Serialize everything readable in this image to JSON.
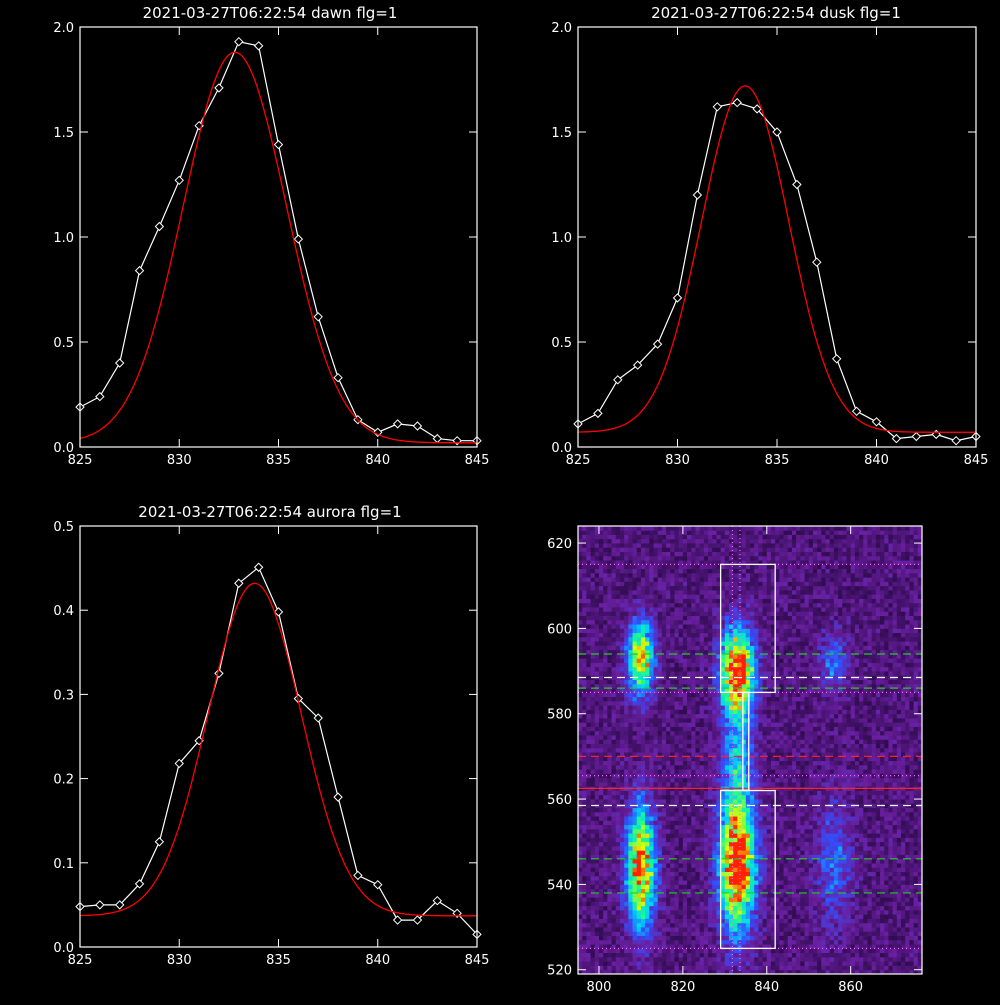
{
  "chart_data": [
    {
      "type": "line",
      "title": "2021-03-27T06:22:54 dawn flg=1",
      "xlim": [
        825,
        845
      ],
      "ylim": [
        0.0,
        2.0
      ],
      "xticks": [
        825,
        830,
        835,
        840,
        845
      ],
      "yticks": [
        "0.0",
        "0.5",
        "1.0",
        "1.5",
        "2.0"
      ],
      "series": [
        {
          "color": "#ffffff",
          "marker": "diamond",
          "x": [
            825,
            826,
            827,
            828,
            829,
            830,
            831,
            832,
            833,
            834,
            835,
            836,
            837,
            838,
            839,
            840,
            841,
            842,
            843,
            844,
            845
          ],
          "y": [
            0.19,
            0.24,
            0.4,
            0.84,
            1.05,
            1.27,
            1.53,
            1.71,
            1.93,
            1.91,
            1.44,
            0.99,
            0.62,
            0.33,
            0.13,
            0.07,
            0.11,
            0.1,
            0.04,
            0.03,
            0.03
          ]
        },
        {
          "color": "#ff0000",
          "fit": "gaussian",
          "amplitude": 1.86,
          "center": 832.8,
          "sigma": 2.6,
          "baseline": 0.02
        }
      ]
    },
    {
      "type": "line",
      "title": "2021-03-27T06:22:54 dusk flg=1",
      "xlim": [
        825,
        845
      ],
      "ylim": [
        0.0,
        2.0
      ],
      "xticks": [
        825,
        830,
        835,
        840,
        845
      ],
      "yticks": [
        "0.0",
        "0.5",
        "1.0",
        "1.5",
        "2.0"
      ],
      "series": [
        {
          "color": "#ffffff",
          "marker": "diamond",
          "x": [
            825,
            826,
            827,
            828,
            829,
            830,
            831,
            832,
            833,
            834,
            835,
            836,
            837,
            838,
            839,
            840,
            841,
            842,
            843,
            844,
            845
          ],
          "y": [
            0.11,
            0.16,
            0.32,
            0.39,
            0.49,
            0.71,
            1.2,
            1.62,
            1.64,
            1.61,
            1.5,
            1.25,
            0.88,
            0.42,
            0.17,
            0.12,
            0.04,
            0.05,
            0.06,
            0.03,
            0.05
          ]
        },
        {
          "color": "#ff0000",
          "fit": "gaussian",
          "amplitude": 1.65,
          "center": 833.4,
          "sigma": 2.2,
          "baseline": 0.07
        }
      ]
    },
    {
      "type": "line",
      "title": "2021-03-27T06:22:54 aurora flg=1",
      "xlim": [
        825,
        845
      ],
      "ylim": [
        0.0,
        0.5
      ],
      "xticks": [
        825,
        830,
        835,
        840,
        845
      ],
      "yticks": [
        "0.0",
        "0.1",
        "0.2",
        "0.3",
        "0.4",
        "0.5"
      ],
      "series": [
        {
          "color": "#ffffff",
          "marker": "diamond",
          "x": [
            825,
            826,
            827,
            828,
            829,
            830,
            831,
            832,
            833,
            834,
            835,
            836,
            837,
            838,
            839,
            840,
            841,
            842,
            843,
            844,
            845
          ],
          "y": [
            0.048,
            0.05,
            0.05,
            0.075,
            0.125,
            0.218,
            0.245,
            0.325,
            0.432,
            0.451,
            0.398,
            0.295,
            0.272,
            0.178,
            0.085,
            0.074,
            0.032,
            0.032,
            0.055,
            0.04,
            0.015
          ]
        },
        {
          "color": "#ff0000",
          "fit": "gaussian",
          "amplitude": 0.395,
          "center": 833.8,
          "sigma": 2.35,
          "baseline": 0.037
        }
      ]
    },
    {
      "type": "heatmap",
      "xlim": [
        795,
        877
      ],
      "ylim": [
        519,
        624
      ],
      "xticks": [
        800,
        820,
        840,
        860
      ],
      "yticks": [
        520,
        540,
        560,
        580,
        600,
        620
      ],
      "colormap": [
        "#000000",
        "#3a0f5e",
        "#6a1fa0",
        "#3050ff",
        "#00d0ff",
        "#20ff80",
        "#e8ff00",
        "#ff2000"
      ],
      "sources": [
        {
          "x": 810,
          "y": 593,
          "amp": 0.75,
          "sx": 2.2,
          "sy": 6
        },
        {
          "x": 810,
          "y": 544,
          "amp": 0.85,
          "sx": 2.4,
          "sy": 10
        },
        {
          "x": 833,
          "y": 590,
          "amp": 1.0,
          "sx": 2.8,
          "sy": 7
        },
        {
          "x": 833,
          "y": 545,
          "amp": 1.0,
          "sx": 3.0,
          "sy": 11
        },
        {
          "x": 833,
          "y": 570,
          "amp": 0.35,
          "sx": 2.5,
          "sy": 8
        },
        {
          "x": 856,
          "y": 592,
          "amp": 0.25,
          "sx": 2.5,
          "sy": 5
        },
        {
          "x": 856,
          "y": 545,
          "amp": 0.25,
          "sx": 3,
          "sy": 10
        }
      ],
      "boxes": [
        {
          "x0": 829,
          "x1": 842,
          "y0": 585,
          "y1": 615,
          "color": "#ffffff"
        },
        {
          "x0": 829,
          "x1": 842,
          "y0": 525,
          "y1": 562,
          "color": "#ffffff"
        },
        {
          "x0": 834.3,
          "x1": 835.7,
          "y0": 562,
          "y1": 585,
          "color": "#ffffff"
        }
      ],
      "hlines": [
        {
          "y": 615,
          "color": "#ff66ff",
          "style": "dotted"
        },
        {
          "y": 594,
          "color": "#22cc22",
          "style": "dashed"
        },
        {
          "y": 588.5,
          "color": "#ffffff",
          "style": "dashed"
        },
        {
          "y": 586,
          "color": "#22cc22",
          "style": "dashed"
        },
        {
          "y": 585,
          "color": "#ff66ff",
          "style": "dotted"
        },
        {
          "y": 570,
          "color": "#ff2020",
          "style": "dashed"
        },
        {
          "y": 565.5,
          "color": "#ff66ff",
          "style": "dotted"
        },
        {
          "y": 562.5,
          "color": "#ff2020",
          "style": "solid"
        },
        {
          "y": 558.5,
          "color": "#ffffff",
          "style": "dashed"
        },
        {
          "y": 546,
          "color": "#22cc22",
          "style": "dashed"
        },
        {
          "y": 538,
          "color": "#22cc22",
          "style": "dashed"
        },
        {
          "y": 525,
          "color": "#ff66ff",
          "style": "dotted"
        }
      ],
      "vlines": [
        {
          "x": 831.8,
          "color": "#ff66ff",
          "style": "dotted"
        },
        {
          "x": 833.6,
          "color": "#ff66ff",
          "style": "dotted"
        }
      ]
    }
  ]
}
